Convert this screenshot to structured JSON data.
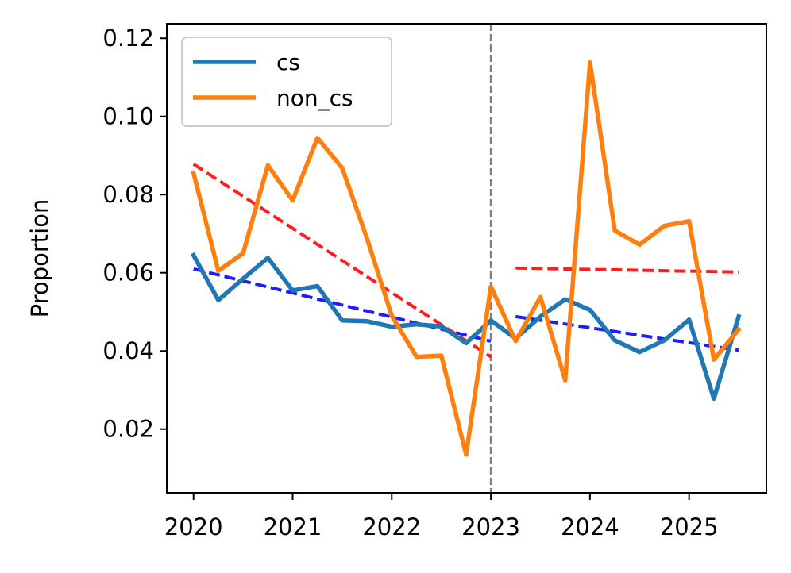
{
  "chart_data": {
    "type": "line",
    "title": "",
    "xlabel": "",
    "ylabel": "Proportion",
    "xlim": [
      2019.73,
      2025.78
    ],
    "ylim": [
      0.0037,
      0.1237
    ],
    "xticks": [
      2020,
      2021,
      2022,
      2023,
      2024,
      2025
    ],
    "xtick_labels": [
      "2020",
      "2021",
      "2022",
      "2023",
      "2024",
      "2025"
    ],
    "yticks": [
      0.02,
      0.04,
      0.06,
      0.08,
      0.1,
      0.12
    ],
    "ytick_labels": [
      "0.02",
      "0.04",
      "0.06",
      "0.08",
      "0.10",
      "0.12"
    ],
    "grid": false,
    "legend_position": "upper-left",
    "vertical_reference_line": {
      "x": 2023,
      "color": "#808080",
      "style": "dashed"
    },
    "series": [
      {
        "name": "cs",
        "color": "#1f77b4",
        "x": [
          2020.0,
          2020.25,
          2020.5,
          2020.75,
          2021.0,
          2021.25,
          2021.5,
          2021.75,
          2022.0,
          2022.25,
          2022.5,
          2022.75,
          2023.0,
          2023.25,
          2023.5,
          2023.75,
          2024.0,
          2024.25,
          2024.5,
          2024.75,
          2025.0,
          2025.25,
          2025.5
        ],
        "y": [
          0.0645,
          0.053,
          0.0585,
          0.0638,
          0.0555,
          0.0566,
          0.0478,
          0.0476,
          0.0462,
          0.0468,
          0.0463,
          0.042,
          0.0478,
          0.0432,
          0.0488,
          0.0532,
          0.0505,
          0.0427,
          0.0397,
          0.0427,
          0.048,
          0.0278,
          0.0488
        ]
      },
      {
        "name": "non_cs",
        "color": "#ff7f0e",
        "x": [
          2020.0,
          2020.25,
          2020.5,
          2020.75,
          2021.0,
          2021.25,
          2021.5,
          2021.75,
          2022.0,
          2022.25,
          2022.5,
          2022.75,
          2023.0,
          2023.25,
          2023.5,
          2023.75,
          2024.0,
          2024.25,
          2024.5,
          2024.75,
          2025.0,
          2025.25,
          2025.5
        ],
        "y": [
          0.0855,
          0.0605,
          0.065,
          0.0875,
          0.0785,
          0.0945,
          0.0868,
          0.0688,
          0.049,
          0.0385,
          0.0388,
          0.0135,
          0.0565,
          0.0425,
          0.0538,
          0.0325,
          0.1138,
          0.0708,
          0.0672,
          0.072,
          0.0732,
          0.0378,
          0.0455
        ]
      }
    ],
    "trend_lines": [
      {
        "series": "cs",
        "color": "#0000ff",
        "style": "dashed",
        "x": [
          2020.0,
          2023.0
        ],
        "y": [
          0.061,
          0.0425
        ]
      },
      {
        "series": "cs",
        "color": "#0000ff",
        "style": "dashed",
        "x": [
          2023.25,
          2025.5
        ],
        "y": [
          0.0488,
          0.0402
        ]
      },
      {
        "series": "non_cs",
        "color": "#ff0000",
        "style": "dashed",
        "x": [
          2020.0,
          2023.0
        ],
        "y": [
          0.0878,
          0.0385
        ]
      },
      {
        "series": "non_cs",
        "color": "#ff0000",
        "style": "dashed",
        "x": [
          2023.25,
          2025.5
        ],
        "y": [
          0.0612,
          0.0602
        ]
      }
    ]
  }
}
